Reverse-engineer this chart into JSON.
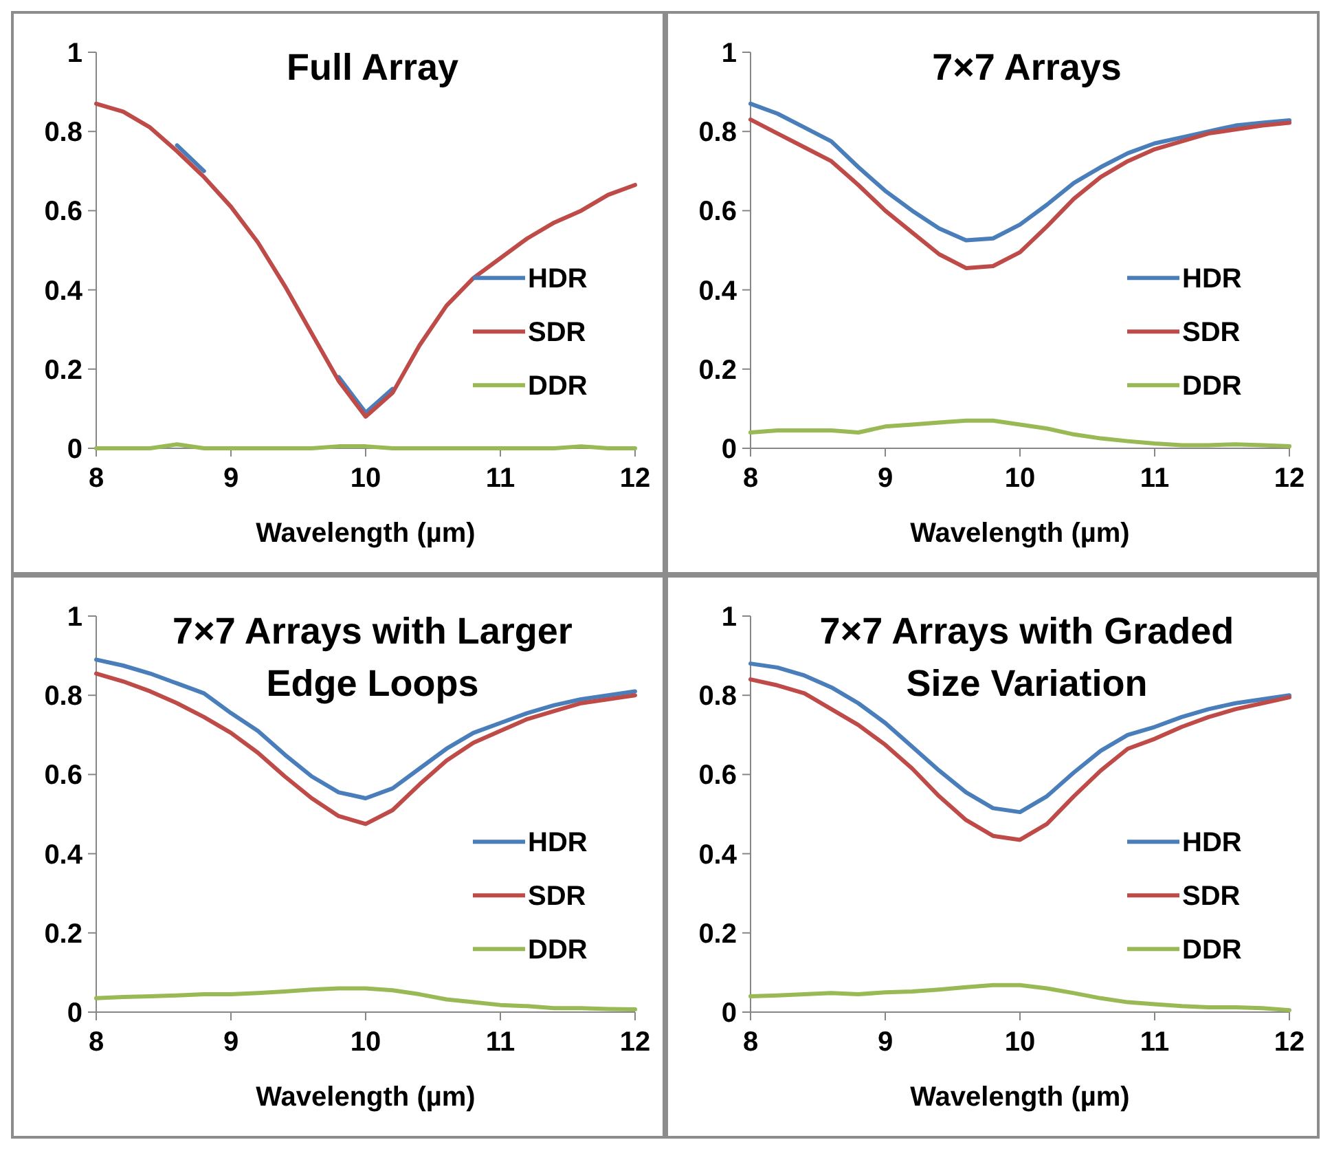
{
  "chart_data": [
    {
      "type": "line",
      "title": "Full Array",
      "xlabel": "Wavelength (µm)",
      "xlim": [
        8,
        12
      ],
      "xticks": [
        8,
        9,
        10,
        11,
        12
      ],
      "ylim": [
        0,
        1
      ],
      "yticks": [
        0,
        0.2,
        0.4,
        0.6,
        0.8,
        1
      ],
      "legend": "right",
      "x": [
        8,
        8.2,
        8.4,
        8.6,
        8.8,
        9,
        9.2,
        9.4,
        9.6,
        9.8,
        10,
        10.2,
        10.4,
        10.6,
        10.8,
        11,
        11.2,
        11.4,
        11.6,
        11.8,
        12
      ],
      "series": [
        {
          "name": "HDR",
          "color": "#4a7ebb",
          "values": [
            null,
            null,
            null,
            0.765,
            0.7,
            null,
            null,
            null,
            null,
            0.18,
            0.09,
            0.15,
            null,
            null,
            null,
            null,
            null,
            null,
            null,
            null,
            null
          ]
        },
        {
          "name": "SDR",
          "color": "#be4b48",
          "values": [
            0.87,
            0.85,
            0.81,
            0.75,
            0.685,
            0.61,
            0.52,
            0.41,
            0.29,
            0.17,
            0.08,
            0.14,
            0.26,
            0.36,
            0.43,
            0.48,
            0.53,
            0.57,
            0.6,
            0.64,
            0.665
          ]
        },
        {
          "name": "DDR",
          "color": "#98b954",
          "values": [
            0,
            0,
            0,
            0.01,
            0,
            0,
            0,
            0,
            0,
            0.005,
            0.005,
            0,
            0,
            0,
            0,
            0,
            0,
            0,
            0.005,
            0,
            0
          ]
        }
      ]
    },
    {
      "type": "line",
      "title": "7×7 Arrays",
      "xlabel": "Wavelength (µm)",
      "xlim": [
        8,
        12
      ],
      "xticks": [
        8,
        9,
        10,
        11,
        12
      ],
      "ylim": [
        0,
        1
      ],
      "yticks": [
        0,
        0.2,
        0.4,
        0.6,
        0.8,
        1
      ],
      "legend": "right",
      "x": [
        8,
        8.2,
        8.4,
        8.6,
        8.8,
        9,
        9.2,
        9.4,
        9.6,
        9.8,
        10,
        10.2,
        10.4,
        10.6,
        10.8,
        11,
        11.2,
        11.4,
        11.6,
        11.8,
        12
      ],
      "series": [
        {
          "name": "HDR",
          "color": "#4a7ebb",
          "values": [
            0.87,
            0.845,
            0.81,
            0.775,
            0.71,
            0.65,
            0.6,
            0.555,
            0.525,
            0.53,
            0.565,
            0.615,
            0.67,
            0.71,
            0.745,
            0.77,
            0.785,
            0.8,
            0.815,
            0.822,
            0.828
          ]
        },
        {
          "name": "SDR",
          "color": "#be4b48",
          "values": [
            0.83,
            0.795,
            0.76,
            0.725,
            0.665,
            0.6,
            0.545,
            0.49,
            0.455,
            0.46,
            0.495,
            0.56,
            0.63,
            0.685,
            0.725,
            0.755,
            0.775,
            0.795,
            0.805,
            0.815,
            0.822
          ]
        },
        {
          "name": "DDR",
          "color": "#98b954",
          "values": [
            0.04,
            0.045,
            0.045,
            0.045,
            0.04,
            0.055,
            0.06,
            0.065,
            0.07,
            0.07,
            0.06,
            0.05,
            0.035,
            0.025,
            0.018,
            0.012,
            0.008,
            0.008,
            0.01,
            0.008,
            0.005
          ]
        }
      ]
    },
    {
      "type": "line",
      "title": "7×7 Arrays with Larger Edge Loops",
      "xlabel": "Wavelength (µm)",
      "xlim": [
        8,
        12
      ],
      "xticks": [
        8,
        9,
        10,
        11,
        12
      ],
      "ylim": [
        0,
        1
      ],
      "yticks": [
        0,
        0.2,
        0.4,
        0.6,
        0.8,
        1
      ],
      "legend": "right",
      "x": [
        8,
        8.2,
        8.4,
        8.6,
        8.8,
        9,
        9.2,
        9.4,
        9.6,
        9.8,
        10,
        10.2,
        10.4,
        10.6,
        10.8,
        11,
        11.2,
        11.4,
        11.6,
        11.8,
        12
      ],
      "series": [
        {
          "name": "HDR",
          "color": "#4a7ebb",
          "values": [
            0.89,
            0.875,
            0.855,
            0.83,
            0.805,
            0.755,
            0.71,
            0.65,
            0.595,
            0.555,
            0.54,
            0.565,
            0.615,
            0.665,
            0.705,
            0.73,
            0.755,
            0.775,
            0.79,
            0.8,
            0.81
          ]
        },
        {
          "name": "SDR",
          "color": "#be4b48",
          "values": [
            0.855,
            0.835,
            0.81,
            0.78,
            0.745,
            0.705,
            0.655,
            0.595,
            0.54,
            0.495,
            0.475,
            0.51,
            0.575,
            0.635,
            0.68,
            0.71,
            0.74,
            0.76,
            0.78,
            0.79,
            0.8
          ]
        },
        {
          "name": "DDR",
          "color": "#98b954",
          "values": [
            0.035,
            0.038,
            0.04,
            0.042,
            0.045,
            0.045,
            0.048,
            0.052,
            0.057,
            0.06,
            0.06,
            0.055,
            0.045,
            0.032,
            0.025,
            0.018,
            0.015,
            0.01,
            0.01,
            0.008,
            0.007
          ]
        }
      ]
    },
    {
      "type": "line",
      "title": "7×7 Arrays with Graded Size Variation",
      "xlabel": "Wavelength (µm)",
      "xlim": [
        8,
        12
      ],
      "xticks": [
        8,
        9,
        10,
        11,
        12
      ],
      "ylim": [
        0,
        1
      ],
      "yticks": [
        0,
        0.2,
        0.4,
        0.6,
        0.8,
        1
      ],
      "legend": "right",
      "x": [
        8,
        8.2,
        8.4,
        8.6,
        8.8,
        9,
        9.2,
        9.4,
        9.6,
        9.8,
        10,
        10.2,
        10.4,
        10.6,
        10.8,
        11,
        11.2,
        11.4,
        11.6,
        11.8,
        12
      ],
      "series": [
        {
          "name": "HDR",
          "color": "#4a7ebb",
          "values": [
            0.88,
            0.87,
            0.85,
            0.82,
            0.78,
            0.73,
            0.67,
            0.61,
            0.555,
            0.515,
            0.505,
            0.545,
            0.605,
            0.66,
            0.7,
            0.72,
            0.745,
            0.765,
            0.78,
            0.79,
            0.8
          ]
        },
        {
          "name": "SDR",
          "color": "#be4b48",
          "values": [
            0.84,
            0.825,
            0.805,
            0.765,
            0.725,
            0.675,
            0.615,
            0.545,
            0.485,
            0.445,
            0.435,
            0.475,
            0.545,
            0.61,
            0.665,
            0.69,
            0.72,
            0.745,
            0.765,
            0.78,
            0.795
          ]
        },
        {
          "name": "DDR",
          "color": "#98b954",
          "values": [
            0.04,
            0.042,
            0.045,
            0.048,
            0.045,
            0.05,
            0.052,
            0.057,
            0.063,
            0.068,
            0.068,
            0.06,
            0.048,
            0.035,
            0.025,
            0.02,
            0.015,
            0.012,
            0.012,
            0.01,
            0.005
          ]
        }
      ]
    }
  ]
}
